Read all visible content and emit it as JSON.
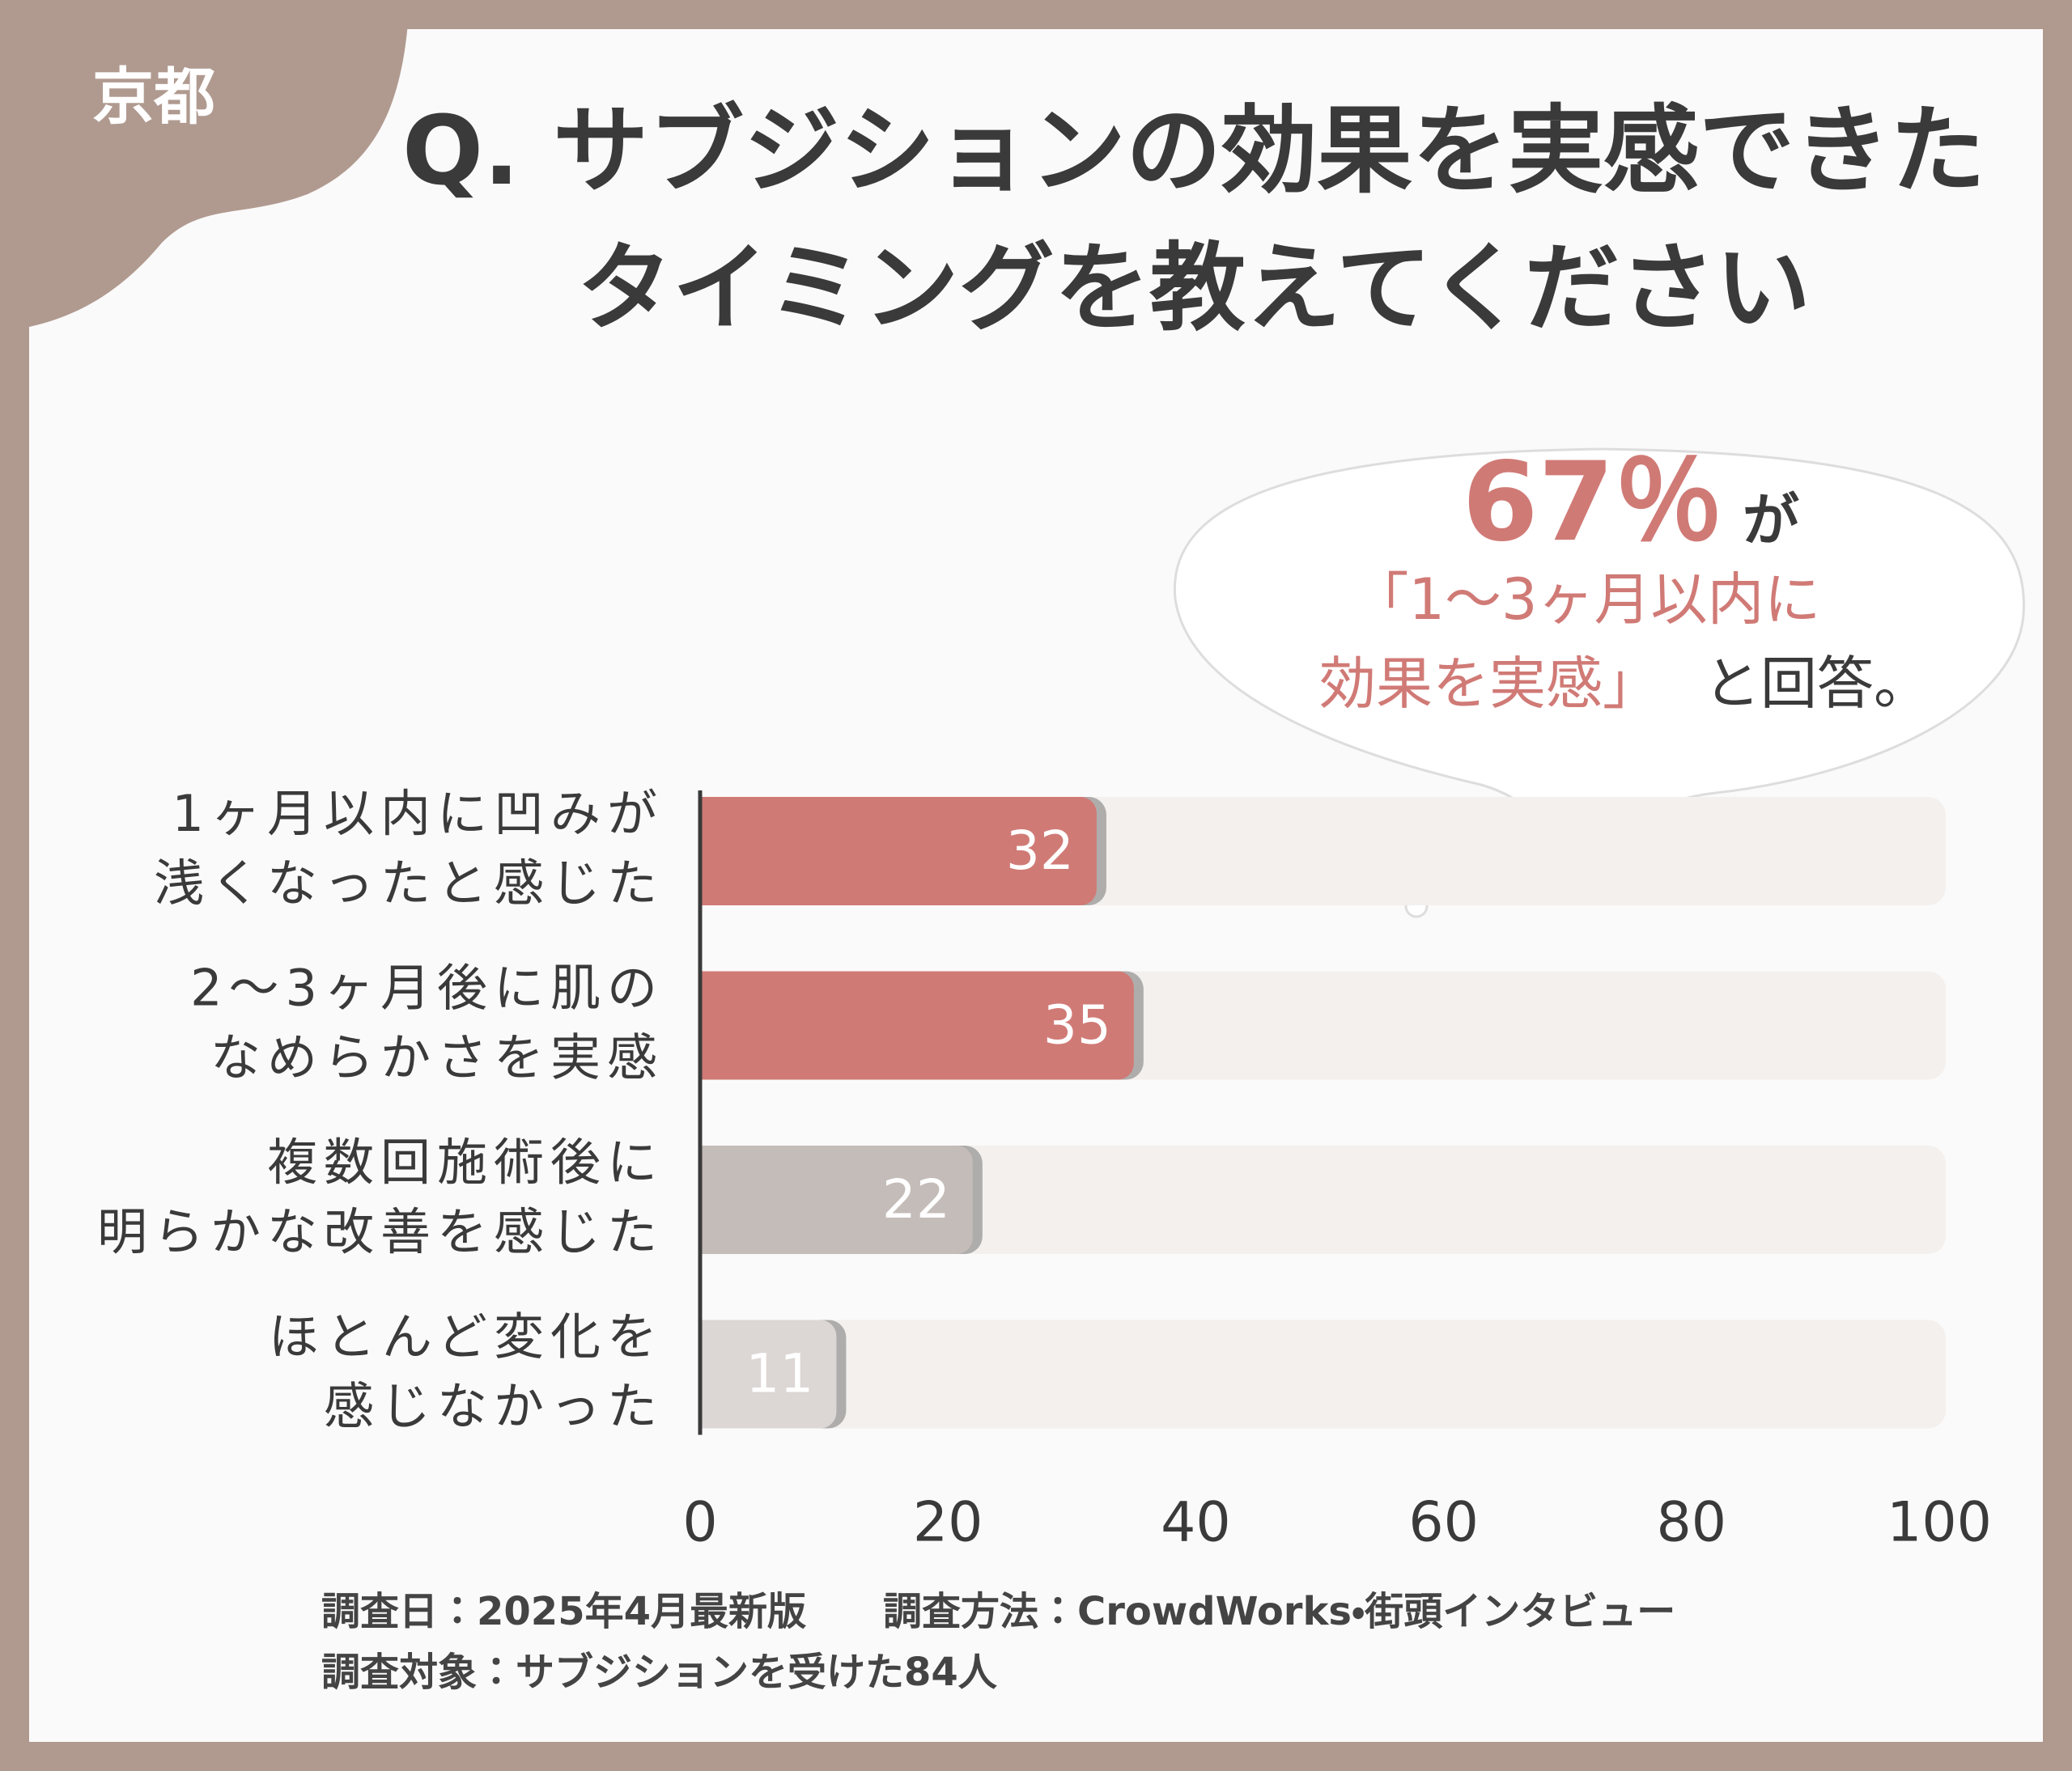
{
  "badge": "京都",
  "chart_data": {
    "type": "bar",
    "title": [
      "Q. サブジションの効果を実感できた",
      "タイミングを教えてください"
    ],
    "categories": [
      [
        "1ヶ月以内に凹みが",
        "浅くなったと感じた"
      ],
      [
        "2〜3ヶ月後に肌の",
        "なめらかさを実感"
      ],
      [
        "複数回施術後に",
        "明らかな改善を感じた"
      ],
      [
        "ほとんど変化を",
        "感じなかった"
      ]
    ],
    "values": [
      32,
      35,
      22,
      11
    ],
    "colors": [
      "#d07a76",
      "#d07a76",
      "#c4bcb8",
      "#dcd6d4"
    ],
    "track_color": "#f3f0ed",
    "xlim": [
      0,
      100
    ],
    "xticks": [
      0,
      20,
      40,
      60,
      80,
      100
    ],
    "callout": {
      "highlight": "67％",
      "suffix": "が",
      "lines": [
        "「1〜3ヶ月以内に",
        "効果を実感」"
      ],
      "tail": "と回答。"
    }
  },
  "footnotes": [
    [
      "調査日：2025年4月最新版",
      "調査方法：CrowdWorks・街頭インタビュー"
    ],
    [
      "調査対象：サブジションを受けた84人"
    ]
  ]
}
